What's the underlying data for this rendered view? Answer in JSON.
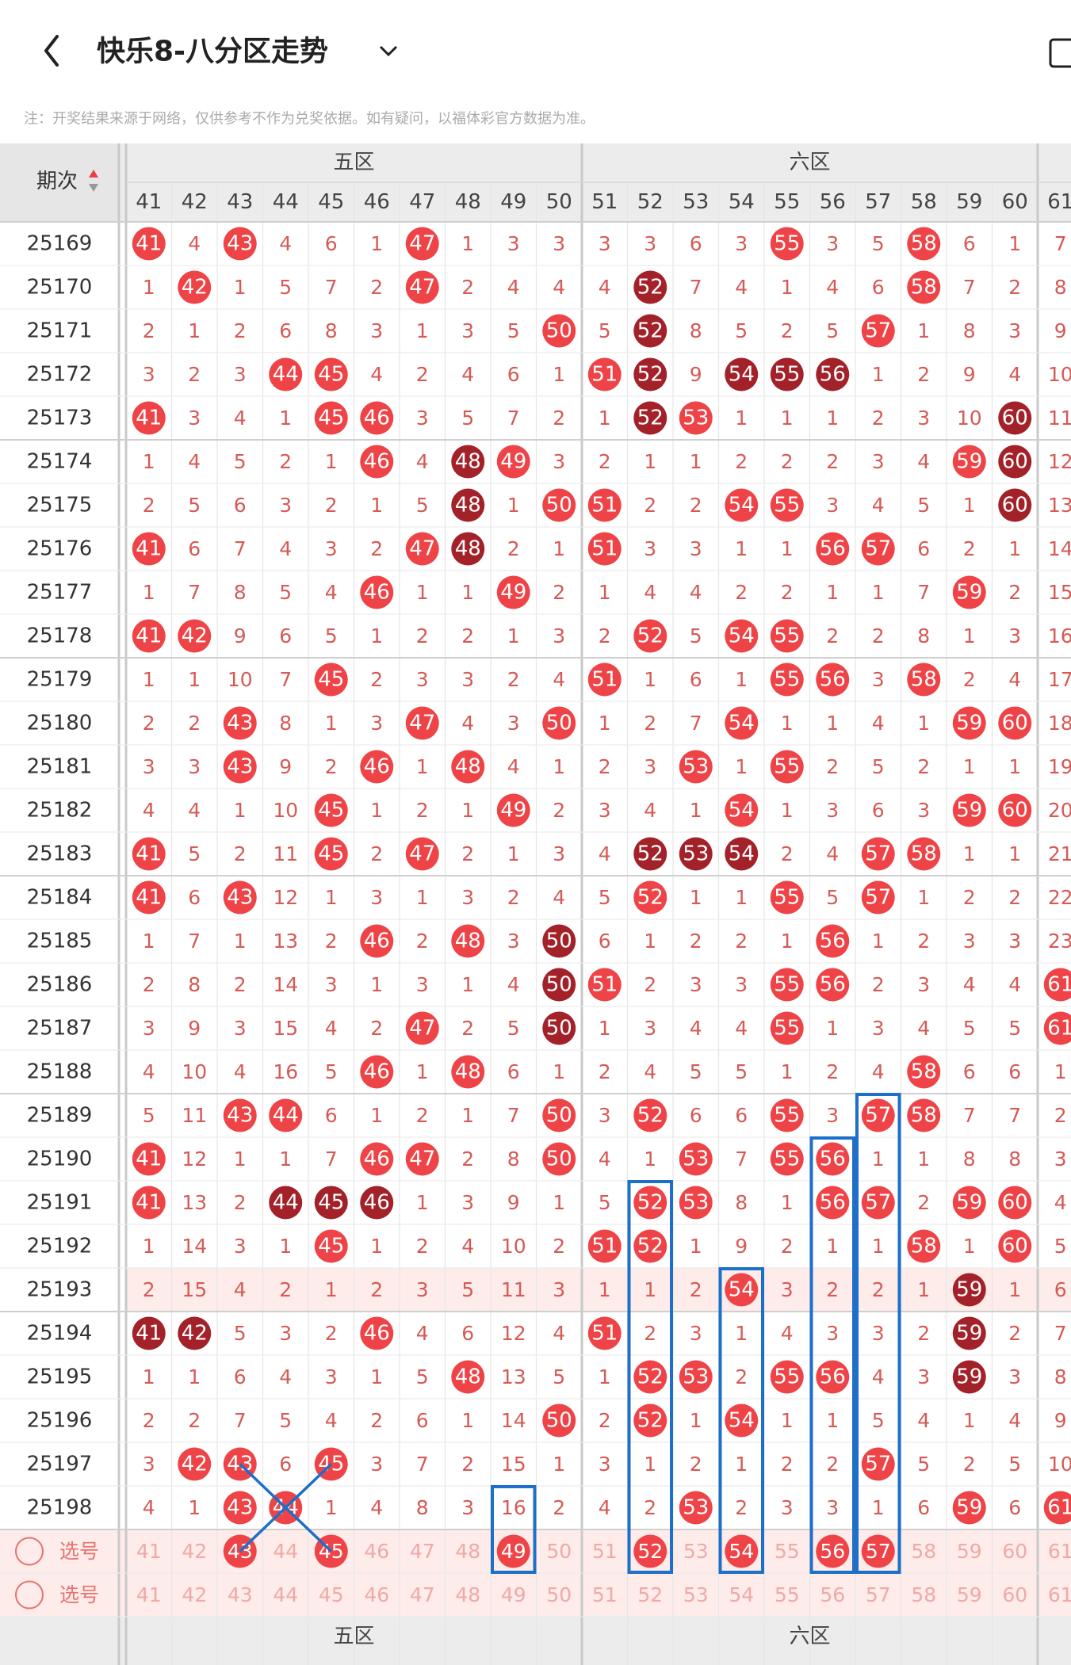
{
  "header": {
    "title": "快乐8-八分区走势",
    "notice": "注：开奖结果来源于网络，仅供参考不作为兑奖依据。如有疑问，以福体彩官方数据为准。"
  },
  "table": {
    "issue_label": "期次",
    "zones": [
      "五区",
      "六区"
    ],
    "columns": [
      41,
      42,
      43,
      44,
      45,
      46,
      47,
      48,
      49,
      50,
      51,
      52,
      53,
      54,
      55,
      56,
      57,
      58,
      59,
      60,
      61
    ],
    "rows": [
      {
        "issue": "25169",
        "cells": [
          41,
          4,
          43,
          4,
          6,
          1,
          47,
          1,
          3,
          3,
          3,
          3,
          6,
          3,
          55,
          3,
          5,
          58,
          6,
          1,
          7
        ],
        "hits": "r.r...r.......r..r..."
      },
      {
        "issue": "25170",
        "cells": [
          1,
          42,
          1,
          5,
          7,
          2,
          47,
          2,
          4,
          4,
          4,
          52,
          7,
          4,
          1,
          4,
          6,
          58,
          7,
          2,
          8
        ],
        "hits": ".r....r....d.....r..."
      },
      {
        "issue": "25171",
        "cells": [
          2,
          1,
          2,
          6,
          8,
          3,
          1,
          3,
          5,
          50,
          5,
          52,
          8,
          5,
          2,
          5,
          57,
          1,
          8,
          3,
          9
        ],
        "hits": ".........r.d....r...."
      },
      {
        "issue": "25172",
        "cells": [
          3,
          2,
          3,
          44,
          45,
          4,
          2,
          4,
          6,
          1,
          51,
          52,
          9,
          54,
          55,
          56,
          1,
          2,
          9,
          4,
          10
        ],
        "hits": "...rr.....rd.ddd....."
      },
      {
        "issue": "25173",
        "cells": [
          41,
          3,
          4,
          1,
          45,
          46,
          3,
          5,
          7,
          2,
          1,
          52,
          53,
          1,
          1,
          1,
          2,
          3,
          10,
          60,
          11
        ],
        "hits": "r...rr.....dr......d."
      },
      {
        "issue": "25174",
        "cells": [
          1,
          4,
          5,
          2,
          1,
          46,
          4,
          48,
          49,
          3,
          2,
          1,
          1,
          2,
          2,
          2,
          3,
          4,
          59,
          60,
          12
        ],
        "hits": ".....r.dr.........rd."
      },
      {
        "issue": "25175",
        "cells": [
          2,
          5,
          6,
          3,
          2,
          1,
          5,
          48,
          1,
          50,
          51,
          2,
          2,
          54,
          55,
          3,
          4,
          5,
          1,
          60,
          13
        ],
        "hits": ".......d.rr..rr....d."
      },
      {
        "issue": "25176",
        "cells": [
          41,
          6,
          7,
          4,
          3,
          2,
          47,
          48,
          2,
          1,
          51,
          3,
          3,
          1,
          1,
          56,
          57,
          6,
          2,
          1,
          14
        ],
        "hits": "r.....rd..r....rr...."
      },
      {
        "issue": "25177",
        "cells": [
          1,
          7,
          8,
          5,
          4,
          46,
          1,
          1,
          49,
          2,
          1,
          4,
          4,
          2,
          2,
          1,
          1,
          7,
          59,
          2,
          15
        ],
        "hits": ".....r..r.........r.."
      },
      {
        "issue": "25178",
        "cells": [
          41,
          42,
          9,
          6,
          5,
          1,
          2,
          2,
          1,
          3,
          2,
          52,
          5,
          54,
          55,
          2,
          2,
          8,
          1,
          3,
          16
        ],
        "hits": "rr.........r.rr......"
      },
      {
        "issue": "25179",
        "cells": [
          1,
          1,
          10,
          7,
          45,
          2,
          3,
          3,
          2,
          4,
          51,
          1,
          6,
          1,
          55,
          56,
          3,
          58,
          2,
          4,
          17
        ],
        "hits": "....r.....r...rr.r..."
      },
      {
        "issue": "25180",
        "cells": [
          2,
          2,
          43,
          8,
          1,
          3,
          47,
          4,
          3,
          50,
          1,
          2,
          7,
          54,
          1,
          1,
          4,
          1,
          59,
          60,
          18
        ],
        "hits": "..r...r..r...r....rr."
      },
      {
        "issue": "25181",
        "cells": [
          3,
          3,
          43,
          9,
          2,
          46,
          1,
          48,
          4,
          1,
          2,
          3,
          53,
          1,
          55,
          2,
          5,
          2,
          1,
          1,
          19
        ],
        "hits": "..r..r.r....r.r......"
      },
      {
        "issue": "25182",
        "cells": [
          4,
          4,
          1,
          10,
          45,
          1,
          2,
          1,
          49,
          2,
          3,
          4,
          1,
          54,
          1,
          3,
          6,
          3,
          59,
          60,
          20
        ],
        "hits": "....r...r....r....rr."
      },
      {
        "issue": "25183",
        "cells": [
          41,
          5,
          2,
          11,
          45,
          2,
          47,
          2,
          1,
          3,
          4,
          52,
          53,
          54,
          2,
          4,
          57,
          58,
          1,
          1,
          21
        ],
        "hits": "r...r.r....ddd..rr..."
      },
      {
        "issue": "25184",
        "cells": [
          41,
          6,
          43,
          12,
          1,
          3,
          1,
          3,
          2,
          4,
          5,
          52,
          1,
          1,
          55,
          5,
          57,
          1,
          2,
          2,
          22
        ],
        "hits": "r.r........r..r.r...."
      },
      {
        "issue": "25185",
        "cells": [
          1,
          7,
          1,
          13,
          2,
          46,
          2,
          48,
          3,
          50,
          6,
          1,
          2,
          2,
          1,
          56,
          1,
          2,
          3,
          3,
          23
        ],
        "hits": ".....r.r.d.....r....."
      },
      {
        "issue": "25186",
        "cells": [
          2,
          8,
          2,
          14,
          3,
          1,
          3,
          1,
          4,
          50,
          51,
          2,
          3,
          3,
          55,
          56,
          2,
          3,
          4,
          4,
          61
        ],
        "hits": ".........dr...rr....r"
      },
      {
        "issue": "25187",
        "cells": [
          3,
          9,
          3,
          15,
          4,
          2,
          47,
          2,
          5,
          50,
          1,
          3,
          4,
          4,
          55,
          1,
          3,
          4,
          5,
          5,
          61
        ],
        "hits": "......r..d....r.....r"
      },
      {
        "issue": "25188",
        "cells": [
          4,
          10,
          4,
          16,
          5,
          46,
          1,
          48,
          6,
          1,
          2,
          4,
          5,
          5,
          1,
          2,
          4,
          58,
          6,
          6,
          1
        ],
        "hits": ".....r.r.........r..."
      },
      {
        "issue": "25189",
        "cells": [
          5,
          11,
          43,
          44,
          6,
          1,
          2,
          1,
          7,
          50,
          3,
          52,
          6,
          6,
          55,
          3,
          57,
          58,
          7,
          7,
          2
        ],
        "hits": "..rr.....r.r..r.rr..."
      },
      {
        "issue": "25190",
        "cells": [
          41,
          12,
          1,
          1,
          7,
          46,
          47,
          2,
          8,
          50,
          4,
          1,
          53,
          7,
          55,
          56,
          1,
          1,
          8,
          8,
          3
        ],
        "hits": "r....rr..r..r.rr....."
      },
      {
        "issue": "25191",
        "cells": [
          41,
          13,
          2,
          44,
          45,
          46,
          1,
          3,
          9,
          1,
          5,
          52,
          53,
          8,
          1,
          56,
          57,
          2,
          59,
          60,
          4
        ],
        "hits": "r..ddd.....rr..rr.rr."
      },
      {
        "issue": "25192",
        "cells": [
          1,
          14,
          3,
          1,
          45,
          1,
          2,
          4,
          10,
          2,
          51,
          52,
          1,
          9,
          2,
          1,
          1,
          58,
          1,
          60,
          5
        ],
        "hits": "....r.....rr.....r.r."
      },
      {
        "issue": "25193",
        "cells": [
          2,
          15,
          4,
          2,
          1,
          2,
          3,
          5,
          11,
          3,
          1,
          1,
          2,
          54,
          3,
          2,
          2,
          1,
          59,
          1,
          6
        ],
        "hits": ".............r....d.."
      },
      {
        "issue": "25194",
        "cells": [
          41,
          42,
          5,
          3,
          2,
          46,
          4,
          6,
          12,
          4,
          51,
          2,
          3,
          1,
          4,
          3,
          3,
          2,
          59,
          2,
          7
        ],
        "hits": "dd...r....r.......d.."
      },
      {
        "issue": "25195",
        "cells": [
          1,
          1,
          6,
          4,
          3,
          1,
          5,
          48,
          13,
          5,
          1,
          52,
          53,
          2,
          55,
          56,
          4,
          3,
          59,
          3,
          8
        ],
        "hits": ".......r...rr.rr..d.."
      },
      {
        "issue": "25196",
        "cells": [
          2,
          2,
          7,
          5,
          4,
          2,
          6,
          1,
          14,
          50,
          2,
          52,
          1,
          54,
          1,
          1,
          5,
          4,
          1,
          4,
          9
        ],
        "hits": ".........r.r.r......."
      },
      {
        "issue": "25197",
        "cells": [
          3,
          42,
          43,
          6,
          45,
          3,
          7,
          2,
          15,
          1,
          3,
          1,
          2,
          1,
          2,
          2,
          57,
          5,
          2,
          5,
          10
        ],
        "hits": ".rr.r...........r...."
      },
      {
        "issue": "25198",
        "cells": [
          4,
          1,
          43,
          44,
          1,
          4,
          8,
          3,
          16,
          2,
          4,
          2,
          53,
          2,
          3,
          3,
          1,
          6,
          59,
          6,
          61
        ],
        "hits": "..rr........r.....r.r"
      }
    ],
    "select_label": "选号",
    "select_rows": [
      {
        "picked": "..r.r...r..r.r.rr...."
      },
      {
        "picked": "....................."
      }
    ]
  }
}
